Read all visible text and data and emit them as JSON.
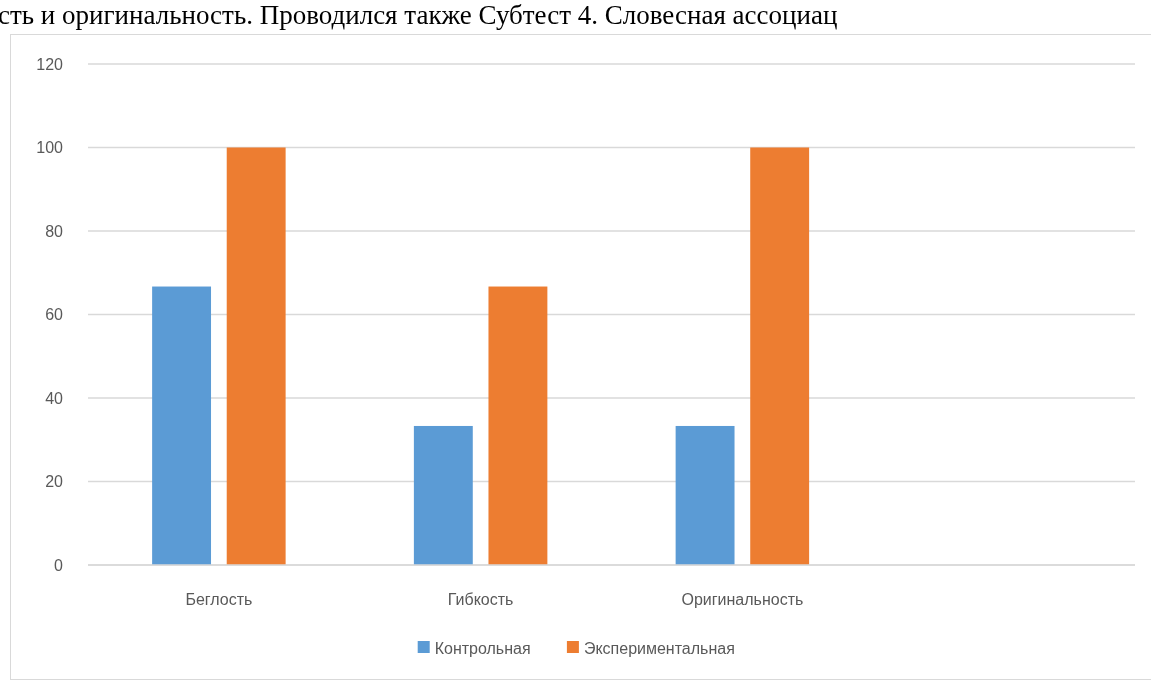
{
  "chart_data": {
    "type": "bar",
    "annotations": [
      "сть и оригинальность. Проводился также Субтест 4. Словесная ассоциац"
    ],
    "categories": [
      "Беглость",
      "Гибкость",
      "Оригинальность",
      null
    ],
    "series": [
      {
        "name": "Контрольная",
        "color": "#5b9bd5",
        "values": [
          66.7,
          33.3,
          33.3,
          null
        ]
      },
      {
        "name": "Экспериментальная",
        "color": "#ed7d31",
        "values": [
          100,
          66.7,
          100,
          null
        ]
      }
    ],
    "ylim": [
      0,
      120
    ],
    "yticks": [
      0,
      20,
      40,
      60,
      80,
      100,
      120
    ],
    "grid": "y",
    "legend": "bottom"
  }
}
